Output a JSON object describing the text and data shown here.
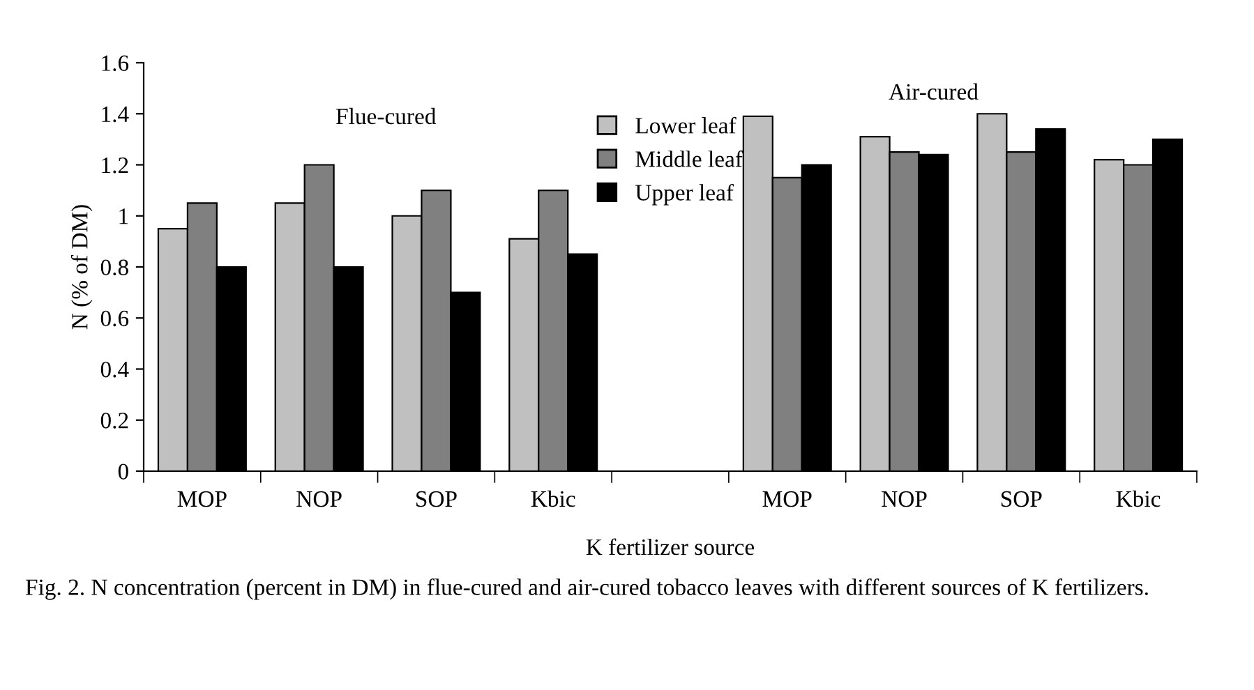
{
  "chart_data": {
    "type": "bar",
    "categories": [
      "MOP",
      "NOP",
      "SOP",
      "Kbic",
      null,
      "MOP",
      "NOP",
      "SOP",
      "Kbic"
    ],
    "series": [
      {
        "name": "Lower leaf",
        "color": "#c0c0c0",
        "values": [
          0.95,
          1.05,
          1.0,
          0.91,
          null,
          1.39,
          1.31,
          1.4,
          1.22
        ]
      },
      {
        "name": "Middle leaf",
        "color": "#808080",
        "values": [
          1.05,
          1.2,
          1.1,
          1.1,
          null,
          1.15,
          1.25,
          1.25,
          1.2
        ]
      },
      {
        "name": "Upper leaf",
        "color": "#000000",
        "values": [
          0.8,
          0.8,
          0.7,
          0.85,
          null,
          1.2,
          1.24,
          1.34,
          1.3
        ]
      }
    ],
    "xlabel": "K fertilizer source",
    "ylabel": "N (% of DM)",
    "ylim": [
      0,
      1.6
    ],
    "yticks": [
      0,
      0.2,
      0.4,
      0.6,
      0.8,
      1,
      1.2,
      1.4,
      1.6
    ],
    "annotations": [
      "Flue-cured",
      "Air-cured",
      "Fig. 2. N concentration (percent in DM) in flue-cured and air-cured tobacco leaves with different sources of K fertilizers."
    ],
    "legend": "top",
    "grid": false
  }
}
